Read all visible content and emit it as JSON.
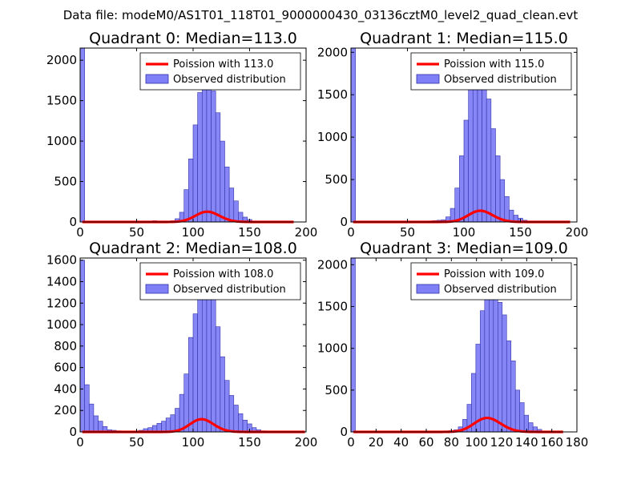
{
  "suptitle": "Data file: modeM0/AS1T01_118T01_9000000430_03136cztM0_level2_quad_clean.evt",
  "colors": {
    "hist_fill": "#7f7ff6",
    "hist_edge": "#3333aa",
    "poisson": "#ff0000",
    "axis": "#000000"
  },
  "chart_data": [
    {
      "type": "bar",
      "title": "Quadrant 0: Median=113.0",
      "median": 113.0,
      "xlim": [
        0,
        200
      ],
      "ylim": [
        0,
        2150
      ],
      "xticks": [
        "0",
        "50",
        "100",
        "150",
        "200"
      ],
      "yticks": [
        "0",
        "500",
        "1000",
        "1500",
        "2000"
      ],
      "xtick_values": [
        0,
        50,
        100,
        150,
        200
      ],
      "ytick_values": [
        0,
        500,
        1000,
        1500,
        2000
      ],
      "bin_width": 4,
      "bins": [
        [
          0,
          2150
        ],
        [
          64,
          15
        ],
        [
          80,
          15
        ],
        [
          84,
          40
        ],
        [
          88,
          120
        ],
        [
          92,
          400
        ],
        [
          96,
          780
        ],
        [
          100,
          1200
        ],
        [
          104,
          1600
        ],
        [
          108,
          1880
        ],
        [
          112,
          1950
        ],
        [
          116,
          1620
        ],
        [
          120,
          1350
        ],
        [
          124,
          1000
        ],
        [
          128,
          680
        ],
        [
          132,
          420
        ],
        [
          136,
          260
        ],
        [
          140,
          120
        ],
        [
          144,
          60
        ],
        [
          148,
          30
        ],
        [
          152,
          12
        ]
      ],
      "curve_x": [
        2,
        189
      ],
      "legend": {
        "line": "Poission with 113.0",
        "patch": "Observed distribution",
        "position": "top-right"
      }
    },
    {
      "type": "bar",
      "title": "Quadrant 1: Median=115.0",
      "median": 115.0,
      "xlim": [
        0,
        200
      ],
      "ylim": [
        0,
        2050
      ],
      "xticks": [
        "0",
        "50",
        "100",
        "150",
        "200"
      ],
      "yticks": [
        "0",
        "500",
        "1000",
        "1500",
        "2000"
      ],
      "xtick_values": [
        0,
        50,
        100,
        150,
        200
      ],
      "ytick_values": [
        0,
        500,
        1000,
        1500,
        2000
      ],
      "bin_width": 4,
      "bins": [
        [
          0,
          2050
        ],
        [
          68,
          12
        ],
        [
          72,
          15
        ],
        [
          76,
          20
        ],
        [
          80,
          25
        ],
        [
          84,
          60
        ],
        [
          88,
          160
        ],
        [
          92,
          400
        ],
        [
          96,
          780
        ],
        [
          100,
          1200
        ],
        [
          104,
          1600
        ],
        [
          108,
          1900
        ],
        [
          112,
          1950
        ],
        [
          116,
          1700
        ],
        [
          120,
          1450
        ],
        [
          124,
          1100
        ],
        [
          128,
          780
        ],
        [
          132,
          500
        ],
        [
          136,
          300
        ],
        [
          140,
          140
        ],
        [
          144,
          80
        ],
        [
          148,
          45
        ],
        [
          152,
          20
        ]
      ],
      "curve_x": [
        2,
        194
      ],
      "legend": {
        "line": "Poission with 115.0",
        "patch": "Observed distribution",
        "position": "top-right"
      }
    },
    {
      "type": "bar",
      "title": "Quadrant 2: Median=108.0",
      "median": 108.0,
      "xlim": [
        0,
        200
      ],
      "ylim": [
        0,
        1620
      ],
      "xticks": [
        "0",
        "50",
        "100",
        "150",
        "200"
      ],
      "yticks": [
        "0",
        "200",
        "400",
        "600",
        "800",
        "1000",
        "1200",
        "1400",
        "1600"
      ],
      "xtick_values": [
        0,
        50,
        100,
        150,
        200
      ],
      "ytick_values": [
        0,
        200,
        400,
        600,
        800,
        1000,
        1200,
        1400,
        1600
      ],
      "bin_width": 4,
      "bins": [
        [
          0,
          1600
        ],
        [
          4,
          440
        ],
        [
          8,
          260
        ],
        [
          12,
          150
        ],
        [
          16,
          100
        ],
        [
          20,
          50
        ],
        [
          24,
          20
        ],
        [
          28,
          15
        ],
        [
          32,
          10
        ],
        [
          36,
          8
        ],
        [
          40,
          6
        ],
        [
          44,
          5
        ],
        [
          48,
          5
        ],
        [
          52,
          15
        ],
        [
          56,
          30
        ],
        [
          60,
          40
        ],
        [
          64,
          60
        ],
        [
          68,
          80
        ],
        [
          72,
          100
        ],
        [
          76,
          130
        ],
        [
          80,
          160
        ],
        [
          84,
          220
        ],
        [
          88,
          350
        ],
        [
          92,
          540
        ],
        [
          96,
          880
        ],
        [
          100,
          1100
        ],
        [
          104,
          1350
        ],
        [
          108,
          1480
        ],
        [
          112,
          1370
        ],
        [
          116,
          1250
        ],
        [
          120,
          980
        ],
        [
          124,
          700
        ],
        [
          128,
          480
        ],
        [
          132,
          340
        ],
        [
          136,
          250
        ],
        [
          140,
          170
        ],
        [
          144,
          110
        ],
        [
          148,
          75
        ],
        [
          152,
          40
        ],
        [
          156,
          20
        ],
        [
          160,
          10
        ]
      ],
      "curve_x": [
        2,
        199
      ],
      "legend": {
        "line": "Poission with 108.0",
        "patch": "Observed distribution",
        "position": "top-right"
      }
    },
    {
      "type": "bar",
      "title": "Quadrant 3: Median=109.0",
      "median": 109.0,
      "xlim": [
        0,
        180
      ],
      "ylim": [
        0,
        2080
      ],
      "xticks": [
        "0",
        "20",
        "40",
        "60",
        "80",
        "100",
        "120",
        "140",
        "160",
        "180"
      ],
      "yticks": [
        "0",
        "500",
        "1000",
        "1500",
        "2000"
      ],
      "xtick_values": [
        0,
        20,
        40,
        60,
        80,
        100,
        120,
        140,
        160,
        180
      ],
      "ytick_values": [
        0,
        500,
        1000,
        1500,
        2000
      ],
      "bin_width": 3.5,
      "bins": [
        [
          0,
          2080
        ],
        [
          62,
          8
        ],
        [
          66,
          10
        ],
        [
          70,
          10
        ],
        [
          74,
          12
        ],
        [
          78,
          15
        ],
        [
          82,
          25
        ],
        [
          85.5,
          60
        ],
        [
          89,
          150
        ],
        [
          92.5,
          330
        ],
        [
          96,
          700
        ],
        [
          99.5,
          1050
        ],
        [
          103,
          1450
        ],
        [
          106.5,
          1600
        ],
        [
          110,
          1900
        ],
        [
          113.5,
          1850
        ],
        [
          117,
          1550
        ],
        [
          120.5,
          1400
        ],
        [
          124,
          1090
        ],
        [
          127.5,
          850
        ],
        [
          131,
          500
        ],
        [
          134.5,
          350
        ],
        [
          138,
          200
        ],
        [
          141.5,
          110
        ],
        [
          145,
          60
        ],
        [
          148.5,
          30
        ],
        [
          152,
          10
        ]
      ],
      "curve_x": [
        2,
        169
      ],
      "legend": {
        "line": "Poission with 109.0",
        "patch": "Observed distribution",
        "position": "top-right"
      }
    }
  ]
}
